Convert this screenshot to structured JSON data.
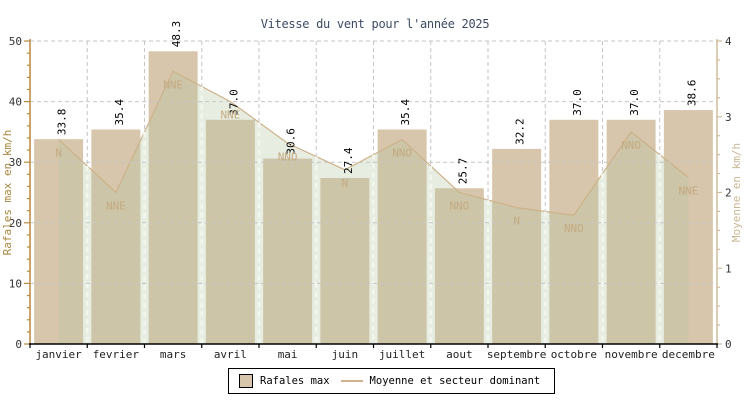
{
  "title": "Vitesse du vent pour l'année 2025",
  "colors": {
    "bar": "#d7c6ab",
    "area": "#b4c49e",
    "line": "#cdb28a",
    "grid": "#c6c6c6",
    "grid_light": "#f3f6ee",
    "left_axis": "#b8893d",
    "left_axis_label": "#a9873e",
    "right_axis": "#cfbc9b",
    "right_axis_label": "#c9b894",
    "tick_text": "#333333",
    "month_text": "#222222",
    "value_label": "#000000",
    "direction_label": "#c3aa82",
    "title_text": "#3c4b63",
    "x_axis": "#000000"
  },
  "chart_data": {
    "type": "bar",
    "title": "Vitesse du vent pour l'année 2025",
    "categories": [
      "janvier",
      "fevrier",
      "mars",
      "avril",
      "mai",
      "juin",
      "juillet",
      "aout",
      "septembre",
      "octobre",
      "novembre",
      "decembre"
    ],
    "series": [
      {
        "name": "Rafales max",
        "type": "bar",
        "axis": "left",
        "values": [
          33.8,
          35.4,
          48.3,
          37.0,
          30.6,
          27.4,
          35.4,
          25.7,
          32.2,
          37.0,
          37.0,
          38.6
        ]
      },
      {
        "name": "Moyenne et secteur dominant",
        "type": "area-line",
        "axis": "right",
        "values": [
          2.7,
          2.0,
          3.6,
          3.2,
          2.65,
          2.3,
          2.7,
          2.0,
          1.8,
          1.7,
          2.8,
          2.2
        ],
        "directions": [
          "N",
          "NNE",
          "NNE",
          "NNE",
          "NNO",
          "N",
          "NNO",
          "NNO",
          "N",
          "NNO",
          "NNO",
          "NNE"
        ]
      }
    ],
    "left_axis": {
      "label": "Rafales max en km/h",
      "min": 0,
      "max": 50,
      "major": 10,
      "minor": 2
    },
    "right_axis": {
      "label": "Moyenne en km/h",
      "min": 0,
      "max": 4,
      "major": 1,
      "minor": 0.25
    },
    "grid": true,
    "legend_position": "bottom"
  }
}
